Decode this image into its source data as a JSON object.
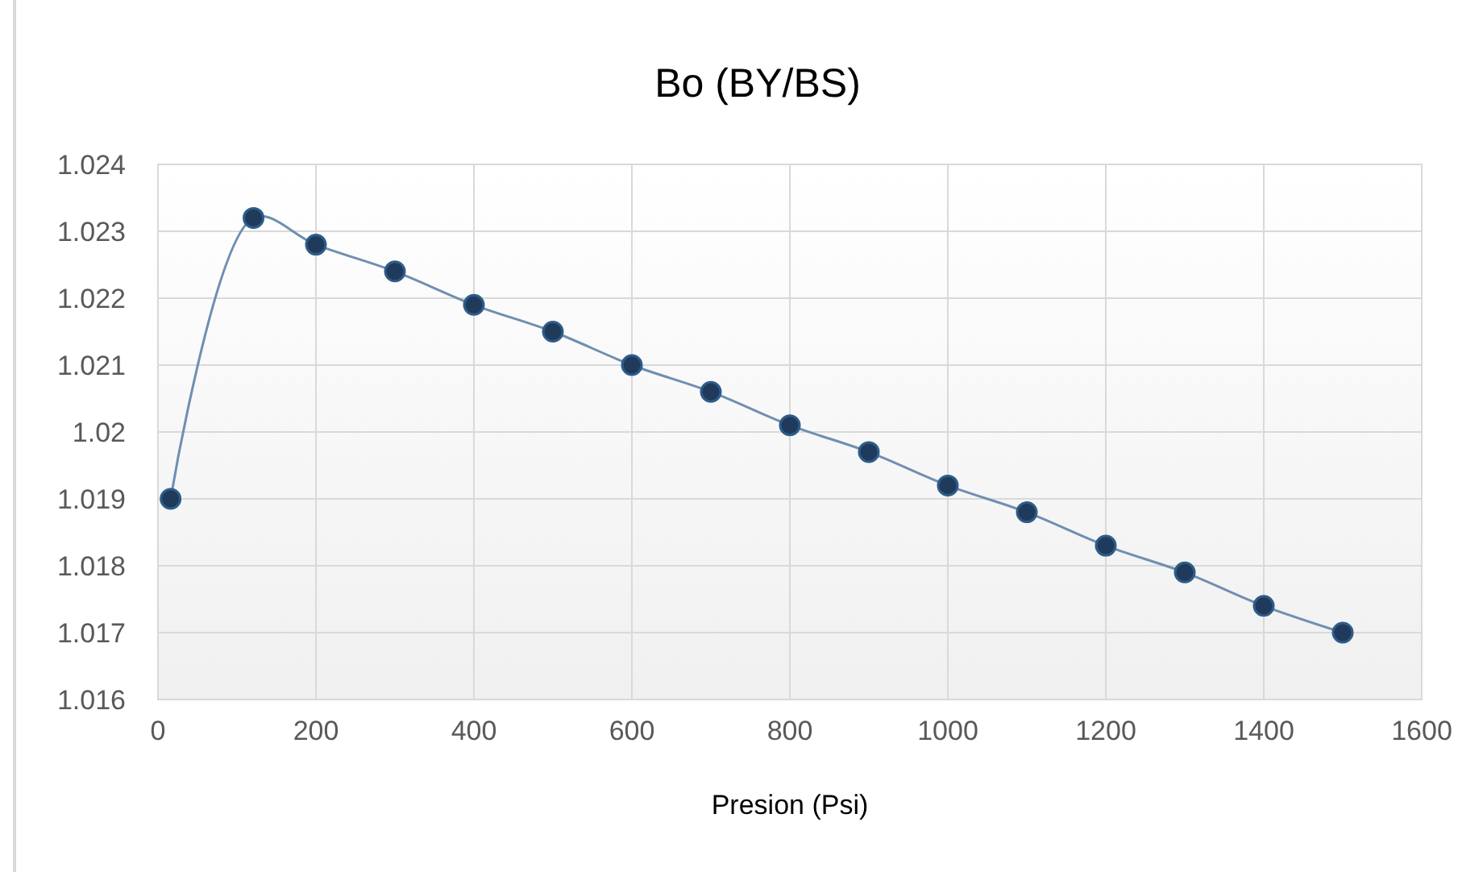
{
  "chart_data": {
    "type": "line",
    "title": "Bo (BY/BS)",
    "xlabel": "Presion (Psi)",
    "x": [
      16,
      121,
      200,
      300,
      400,
      500,
      600,
      700,
      800,
      900,
      1000,
      1100,
      1200,
      1300,
      1400,
      1500
    ],
    "series": [
      {
        "color": "#1f3a5a",
        "values": [
          1.019,
          1.0232,
          1.0228,
          1.0224,
          1.0219,
          1.0215,
          1.021,
          1.0206,
          1.0201,
          1.0197,
          1.0192,
          1.0188,
          1.0183,
          1.0179,
          1.0174,
          1.017
        ]
      }
    ],
    "xlim": [
      0,
      1600
    ],
    "xticks": [
      0,
      200,
      400,
      600,
      800,
      1000,
      1200,
      1400,
      1600
    ],
    "ylim": [
      1.016,
      1.024
    ],
    "yticks": [
      {
        "value": 1.016,
        "label": "1.016"
      },
      {
        "value": 1.017,
        "label": "1.017"
      },
      {
        "value": 1.018,
        "label": "1.018"
      },
      {
        "value": 1.019,
        "label": "1.019"
      },
      {
        "value": 1.02,
        "label": "1.02"
      },
      {
        "value": 1.021,
        "label": "1.021"
      },
      {
        "value": 1.022,
        "label": "1.022"
      },
      {
        "value": 1.023,
        "label": "1.023"
      },
      {
        "value": 1.024,
        "label": "1.024"
      }
    ],
    "grid": true,
    "marker": "circle",
    "line_style": "solid"
  }
}
